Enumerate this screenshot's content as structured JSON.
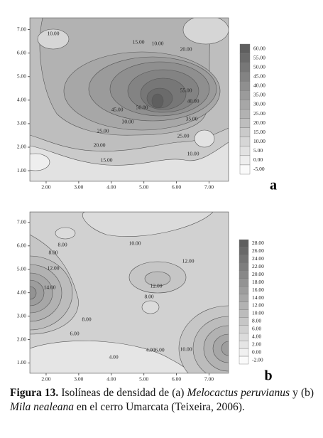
{
  "chart_data": [
    {
      "type": "contour",
      "panel_label": "a",
      "xlim": [
        1.5,
        7.6
      ],
      "ylim": [
        0.55,
        7.5
      ],
      "xticks": [
        {
          "value": 2,
          "label": "2.00"
        },
        {
          "value": 3,
          "label": "3.00"
        },
        {
          "value": 4,
          "label": "4.00"
        },
        {
          "value": 5,
          "label": "5.00"
        },
        {
          "value": 6,
          "label": "6.00"
        },
        {
          "value": 7,
          "label": "7.00"
        }
      ],
      "yticks": [
        {
          "value": 1,
          "label": "1.00"
        },
        {
          "value": 2,
          "label": "2.00"
        },
        {
          "value": 3,
          "label": "3.00"
        },
        {
          "value": 4,
          "label": "4.00"
        },
        {
          "value": 5,
          "label": "5.00"
        },
        {
          "value": 6,
          "label": "6.00"
        },
        {
          "value": 7,
          "label": "7.00"
        }
      ],
      "colorbar_ticks": [
        {
          "value": 60,
          "label": "60.00"
        },
        {
          "value": 55,
          "label": "55.00"
        },
        {
          "value": 50,
          "label": "50.00"
        },
        {
          "value": 45,
          "label": "45.00"
        },
        {
          "value": 40,
          "label": "40.00"
        },
        {
          "value": 35,
          "label": "35.00"
        },
        {
          "value": 30,
          "label": "30.00"
        },
        {
          "value": 25,
          "label": "25.00"
        },
        {
          "value": 20,
          "label": "20.00"
        },
        {
          "value": 15,
          "label": "15.00"
        },
        {
          "value": 10,
          "label": "10.00"
        },
        {
          "value": 5,
          "label": "5.00"
        },
        {
          "value": 0,
          "label": "0.00"
        },
        {
          "value": -5,
          "label": "-5.00"
        }
      ],
      "contour_labels": [
        {
          "value": 10,
          "label": "10.00"
        },
        {
          "value": 15,
          "label": "15.00"
        },
        {
          "value": 10,
          "label": "10.00"
        },
        {
          "value": 20,
          "label": "20.00"
        },
        {
          "value": 45,
          "label": "45.00"
        },
        {
          "value": 50,
          "label": "50.00"
        },
        {
          "value": 55,
          "label": "55.00"
        },
        {
          "value": 40,
          "label": "40.00"
        },
        {
          "value": 35,
          "label": "35.00"
        },
        {
          "value": 30,
          "label": "30.00"
        },
        {
          "value": 25,
          "label": "25.00"
        },
        {
          "value": 20,
          "label": "20.00"
        },
        {
          "value": 15,
          "label": "15.00"
        },
        {
          "value": 25,
          "label": "25.00"
        },
        {
          "value": 10,
          "label": "10.00"
        }
      ]
    },
    {
      "type": "contour",
      "panel_label": "b",
      "xlim": [
        1.5,
        7.6
      ],
      "ylim": [
        0.56,
        7.45
      ],
      "xticks": [
        {
          "value": 2,
          "label": "2.00"
        },
        {
          "value": 3,
          "label": "3.00"
        },
        {
          "value": 4,
          "label": "4.00"
        },
        {
          "value": 5,
          "label": "5.00"
        },
        {
          "value": 6,
          "label": "6.00"
        },
        {
          "value": 7,
          "label": "7.00"
        }
      ],
      "yticks": [
        {
          "value": 1,
          "label": "1.00"
        },
        {
          "value": 2,
          "label": "2.00"
        },
        {
          "value": 3,
          "label": "3.00"
        },
        {
          "value": 4,
          "label": "4.00"
        },
        {
          "value": 5,
          "label": "5.00"
        },
        {
          "value": 6,
          "label": "6.00"
        },
        {
          "value": 7,
          "label": "7.00"
        }
      ],
      "colorbar_ticks": [
        {
          "value": 28,
          "label": "28.00"
        },
        {
          "value": 26,
          "label": "26.00"
        },
        {
          "value": 24,
          "label": "24.00"
        },
        {
          "value": 22,
          "label": "22.00"
        },
        {
          "value": 20,
          "label": "20.00"
        },
        {
          "value": 18,
          "label": "18.00"
        },
        {
          "value": 16,
          "label": "16.00"
        },
        {
          "value": 14,
          "label": "14.00"
        },
        {
          "value": 12,
          "label": "12.00"
        },
        {
          "value": 10,
          "label": "10.00"
        },
        {
          "value": 8,
          "label": "8.00"
        },
        {
          "value": 6,
          "label": "6.00"
        },
        {
          "value": 4,
          "label": "4.00"
        },
        {
          "value": 2,
          "label": "2.00"
        },
        {
          "value": 0,
          "label": "0.00"
        },
        {
          "value": -2,
          "label": "-2.00"
        }
      ],
      "contour_labels": [
        {
          "value": 8,
          "label": "8.00"
        },
        {
          "value": 8,
          "label": "8.00"
        },
        {
          "value": 10,
          "label": "10.00"
        },
        {
          "value": 12,
          "label": "12.00"
        },
        {
          "value": 14,
          "label": "14.00"
        },
        {
          "value": 12,
          "label": "12.00"
        },
        {
          "value": 12,
          "label": "12.00"
        },
        {
          "value": 8,
          "label": "8.00"
        },
        {
          "value": 8,
          "label": "8.00"
        },
        {
          "value": 6,
          "label": "6.00"
        },
        {
          "value": 4,
          "label": "4.00"
        },
        {
          "value": 4,
          "label": "4.00"
        },
        {
          "value": 6,
          "label": "6.00"
        },
        {
          "value": 10,
          "label": "10.00"
        }
      ]
    }
  ],
  "caption": {
    "label": "Figura 13.",
    "parts": [
      "Isolíneas de densidad de (a) ",
      "Melocactus peruvianus",
      " y (b) ",
      "Mila nealeana",
      " en el cerro Umarcata (Teixeira, 2006)."
    ]
  }
}
